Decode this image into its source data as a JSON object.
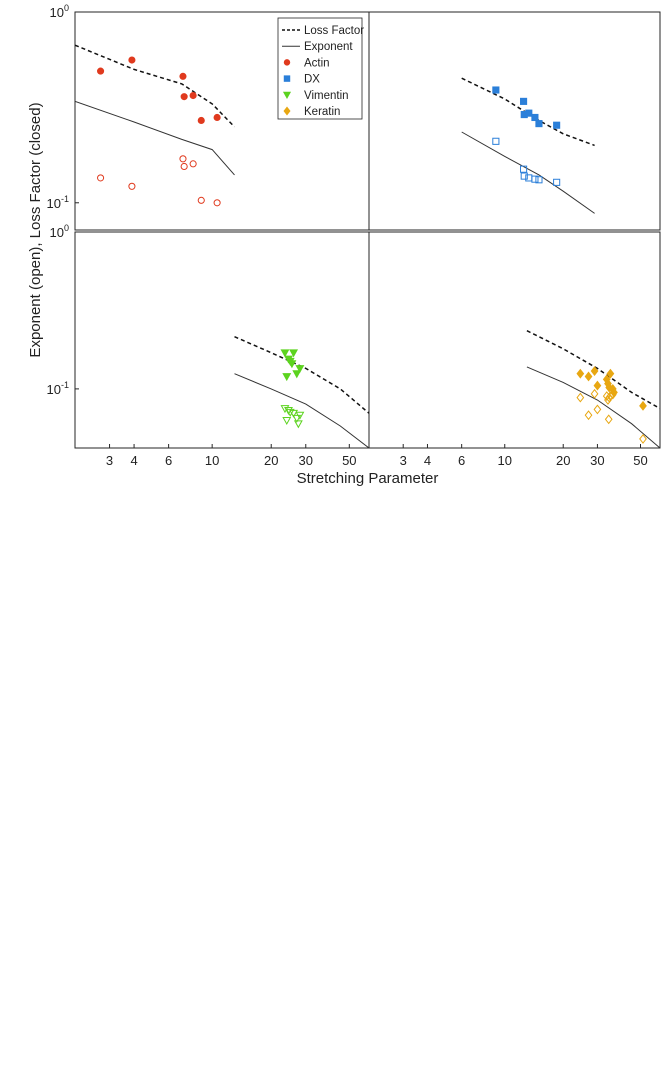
{
  "chart_data": {
    "type": "scatter",
    "xlabel": "Stretching Parameter",
    "ylabel": "Exponent (open), Loss Factor (closed)",
    "xscale": "log",
    "yscale": "log",
    "xlim": [
      2,
      63
    ],
    "y_top_rows": {
      "top": [
        0.072,
        1.0
      ],
      "bottom": [
        0.042,
        1.0
      ]
    },
    "x_ticks": [
      "3",
      "4",
      "6",
      "10",
      "20",
      "30",
      "50"
    ],
    "y_ticks_top": [
      "10^0",
      "10^-1"
    ],
    "y_ticks_bottom": [
      "10^0",
      "10^-1"
    ],
    "legend": {
      "placement": "top-right of top-left panel",
      "entries": [
        {
          "label": "Loss Factor",
          "marker": "dashed-line"
        },
        {
          "label": "Exponent",
          "marker": "solid-line"
        },
        {
          "label": "Actin",
          "marker": "circle",
          "color": "#e03a1e"
        },
        {
          "label": "DX",
          "marker": "square",
          "color": "#2b7fd9"
        },
        {
          "label": "Vimentin",
          "marker": "triangle-down",
          "color": "#5cd31f"
        },
        {
          "label": "Keratin",
          "marker": "diamond",
          "color": "#e8a712"
        }
      ]
    },
    "panels": [
      {
        "series": "Actin",
        "color": "#e03a1e",
        "marker": "circle",
        "loss_factor_line": [
          [
            2.0,
            0.67
          ],
          [
            4,
            0.5
          ],
          [
            7,
            0.42
          ],
          [
            10,
            0.33
          ],
          [
            13,
            0.25
          ]
        ],
        "exponent_line": [
          [
            2.0,
            0.34
          ],
          [
            4,
            0.265
          ],
          [
            7,
            0.215
          ],
          [
            10,
            0.19
          ],
          [
            13,
            0.14
          ]
        ],
        "loss_factor_points": [
          [
            2.7,
            0.49
          ],
          [
            3.9,
            0.56
          ],
          [
            7.1,
            0.46
          ],
          [
            7.2,
            0.36
          ],
          [
            8,
            0.365
          ],
          [
            8.8,
            0.27
          ],
          [
            10.6,
            0.28
          ]
        ],
        "exponent_points": [
          [
            2.7,
            0.135
          ],
          [
            3.9,
            0.122
          ],
          [
            7.1,
            0.17
          ],
          [
            7.2,
            0.155
          ],
          [
            8,
            0.16
          ],
          [
            8.8,
            0.103
          ],
          [
            10.6,
            0.1
          ]
        ]
      },
      {
        "series": "DX",
        "color": "#2b7fd9",
        "marker": "square",
        "loss_factor_line": [
          [
            6,
            0.45
          ],
          [
            10,
            0.35
          ],
          [
            15,
            0.27
          ],
          [
            20,
            0.23
          ],
          [
            29,
            0.2
          ]
        ],
        "exponent_line": [
          [
            6,
            0.235
          ],
          [
            10,
            0.175
          ],
          [
            15,
            0.14
          ],
          [
            20,
            0.115
          ],
          [
            29,
            0.088
          ]
        ],
        "loss_factor_points": [
          [
            9,
            0.39
          ],
          [
            12.5,
            0.34
          ],
          [
            12.6,
            0.29
          ],
          [
            13.3,
            0.295
          ],
          [
            14.3,
            0.28
          ],
          [
            15,
            0.26
          ],
          [
            18.5,
            0.255
          ]
        ],
        "exponent_points": [
          [
            9,
            0.21
          ],
          [
            12.5,
            0.15
          ],
          [
            12.6,
            0.138
          ],
          [
            13.3,
            0.135
          ],
          [
            14.3,
            0.133
          ],
          [
            15,
            0.132
          ],
          [
            18.5,
            0.128
          ]
        ]
      },
      {
        "series": "Vimentin",
        "color": "#5cd31f",
        "marker": "triangle-down",
        "loss_factor_line": [
          [
            13,
            0.215
          ],
          [
            20,
            0.17
          ],
          [
            30,
            0.135
          ],
          [
            45,
            0.1
          ],
          [
            63,
            0.07
          ]
        ],
        "exponent_line": [
          [
            13,
            0.125
          ],
          [
            20,
            0.1
          ],
          [
            30,
            0.08
          ],
          [
            45,
            0.058
          ],
          [
            63,
            0.042
          ]
        ],
        "loss_factor_points": [
          [
            23.5,
            0.17
          ],
          [
            24.5,
            0.155
          ],
          [
            25,
            0.15
          ],
          [
            25.5,
            0.145
          ],
          [
            26,
            0.17
          ],
          [
            27,
            0.125
          ],
          [
            28,
            0.135
          ],
          [
            24,
            0.12
          ]
        ],
        "exponent_points": [
          [
            23.5,
            0.075
          ],
          [
            24.5,
            0.073
          ],
          [
            25,
            0.071
          ],
          [
            26,
            0.07
          ],
          [
            27,
            0.065
          ],
          [
            28,
            0.068
          ],
          [
            24,
            0.063
          ],
          [
            27.5,
            0.06
          ]
        ]
      },
      {
        "series": "Keratin",
        "color": "#e8a712",
        "marker": "diamond",
        "loss_factor_line": [
          [
            13,
            0.235
          ],
          [
            20,
            0.18
          ],
          [
            30,
            0.135
          ],
          [
            45,
            0.095
          ],
          [
            63,
            0.075
          ]
        ],
        "exponent_line": [
          [
            13,
            0.138
          ],
          [
            20,
            0.11
          ],
          [
            30,
            0.085
          ],
          [
            45,
            0.06
          ],
          [
            63,
            0.042
          ]
        ],
        "loss_factor_points": [
          [
            24.5,
            0.125
          ],
          [
            27,
            0.12
          ],
          [
            29,
            0.13
          ],
          [
            30,
            0.105
          ],
          [
            33.5,
            0.115
          ],
          [
            34,
            0.108
          ],
          [
            34.5,
            0.102
          ],
          [
            35,
            0.125
          ],
          [
            36,
            0.1
          ],
          [
            36.5,
            0.095
          ],
          [
            51.5,
            0.078
          ]
        ],
        "exponent_points": [
          [
            24.5,
            0.088
          ],
          [
            27,
            0.068
          ],
          [
            29,
            0.093
          ],
          [
            30,
            0.074
          ],
          [
            33.5,
            0.09
          ],
          [
            34,
            0.085
          ],
          [
            34.5,
            0.088
          ],
          [
            35,
            0.09
          ],
          [
            34.3,
            0.064
          ],
          [
            36,
            0.092
          ],
          [
            51.5,
            0.048
          ]
        ]
      }
    ]
  }
}
